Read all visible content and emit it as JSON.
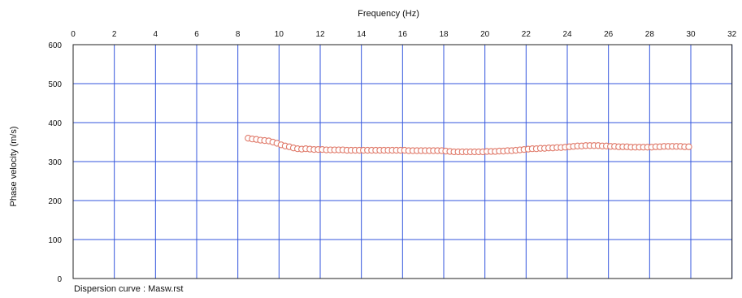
{
  "chart_data": {
    "type": "scatter",
    "xlabel": "Frequency (Hz)",
    "ylabel": "Phase velocity (m/s)",
    "caption": "Dispersion curve : Masw.rst",
    "xlim": [
      0,
      32
    ],
    "ylim": [
      0,
      600
    ],
    "x_ticks": [
      "0",
      "2",
      "4",
      "6",
      "8",
      "10",
      "12",
      "14",
      "16",
      "18",
      "20",
      "22",
      "24",
      "26",
      "28",
      "30",
      "32"
    ],
    "y_ticks": [
      "0",
      "100",
      "200",
      "300",
      "400",
      "500",
      "600"
    ],
    "x_axis_position": "top",
    "grid": true,
    "colors": {
      "grid": "#3355dd",
      "marker_edge": "#e07a6a",
      "marker_fill": "#ffffff",
      "frame": "#222222"
    },
    "series": [
      {
        "x": [
          8.5,
          8.7,
          8.9,
          9.1,
          9.3,
          9.5,
          9.7,
          9.9,
          10.1,
          10.3,
          10.5,
          10.7,
          10.9,
          11.1,
          11.3,
          11.5,
          11.7,
          11.9,
          12.1,
          12.3,
          12.5,
          12.7,
          12.9,
          13.1,
          13.3,
          13.5,
          13.7,
          13.9,
          14.1,
          14.3,
          14.5,
          14.7,
          14.9,
          15.1,
          15.3,
          15.5,
          15.7,
          15.9,
          16.1,
          16.3,
          16.5,
          16.7,
          16.9,
          17.1,
          17.3,
          17.5,
          17.7,
          17.9,
          18.1,
          18.3,
          18.5,
          18.7,
          18.9,
          19.1,
          19.3,
          19.5,
          19.7,
          19.9,
          20.1,
          20.3,
          20.5,
          20.7,
          20.9,
          21.1,
          21.3,
          21.5,
          21.7,
          21.9,
          22.1,
          22.3,
          22.5,
          22.7,
          22.9,
          23.1,
          23.3,
          23.5,
          23.7,
          23.9,
          24.1,
          24.3,
          24.5,
          24.7,
          24.9,
          25.1,
          25.3,
          25.5,
          25.7,
          25.9,
          26.1,
          26.3,
          26.5,
          26.7,
          26.9,
          27.1,
          27.3,
          27.5,
          27.7,
          27.9,
          28.1,
          28.3,
          28.5,
          28.7,
          28.9,
          29.1,
          29.3,
          29.5,
          29.7,
          29.9
        ],
        "y": [
          360,
          358,
          357,
          355,
          354,
          353,
          350,
          347,
          343,
          340,
          338,
          335,
          333,
          332,
          333,
          332,
          331,
          331,
          331,
          330,
          330,
          330,
          330,
          330,
          329,
          329,
          329,
          329,
          329,
          329,
          329,
          329,
          329,
          329,
          329,
          329,
          329,
          329,
          329,
          328,
          328,
          328,
          328,
          328,
          328,
          328,
          328,
          328,
          327,
          326,
          325,
          325,
          325,
          325,
          325,
          325,
          325,
          325,
          326,
          326,
          326,
          327,
          327,
          328,
          328,
          329,
          330,
          331,
          332,
          333,
          333,
          334,
          334,
          335,
          335,
          336,
          336,
          337,
          338,
          339,
          340,
          340,
          341,
          341,
          341,
          341,
          340,
          340,
          339,
          339,
          338,
          338,
          338,
          337,
          337,
          337,
          337,
          337,
          337,
          338,
          338,
          339,
          339,
          339,
          339,
          339,
          338,
          338
        ]
      }
    ]
  }
}
